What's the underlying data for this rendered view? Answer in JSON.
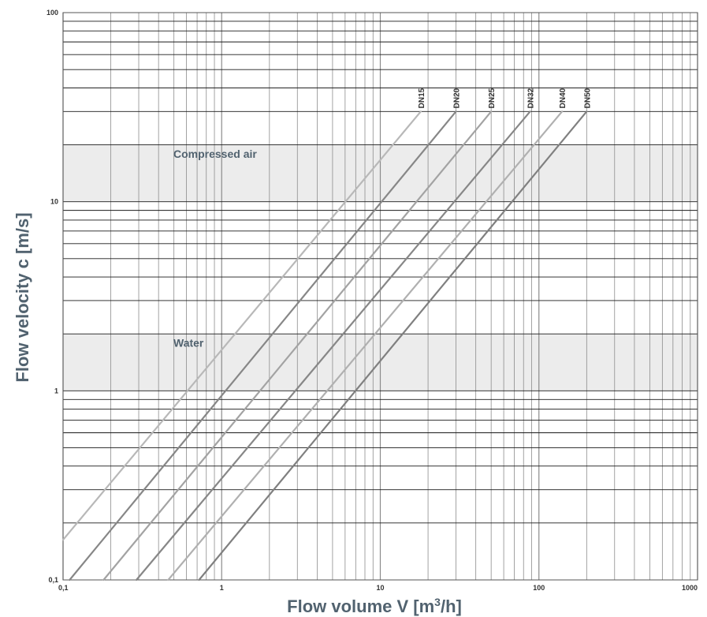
{
  "chart_data": {
    "type": "line",
    "xlabel_prefix": "Flow volume V [m",
    "xlabel_sup": "3",
    "xlabel_suffix": "/h]",
    "ylabel": "Flow velocity c [m/s]",
    "x_scale": "log",
    "y_scale": "log",
    "xlim": [
      0.1,
      1000
    ],
    "ylim": [
      0.1,
      100
    ],
    "x_ticks": [
      {
        "value": 0.1,
        "label": "0,1"
      },
      {
        "value": 1,
        "label": "1"
      },
      {
        "value": 10,
        "label": "10"
      },
      {
        "value": 100,
        "label": "100"
      },
      {
        "value": 1000,
        "label": "1000"
      }
    ],
    "y_ticks": [
      {
        "value": 0.1,
        "label": "0,1"
      },
      {
        "value": 1,
        "label": "1"
      },
      {
        "value": 10,
        "label": "10"
      },
      {
        "value": 100,
        "label": "100"
      }
    ],
    "grid": true,
    "bands": [
      {
        "label": "Compressed air",
        "y_range": [
          10,
          20
        ],
        "color": "#ececec"
      },
      {
        "label": "Water",
        "y_range": [
          1,
          2
        ],
        "color": "#ececec"
      }
    ],
    "series": [
      {
        "name": "DN15",
        "color": "#b8b8b8",
        "points": [
          [
            0.1,
            0.163
          ],
          [
            18,
            30
          ]
        ]
      },
      {
        "name": "DN20",
        "color": "#878787",
        "points": [
          [
            0.11,
            0.1
          ],
          [
            30,
            30
          ]
        ]
      },
      {
        "name": "DN25",
        "color": "#a3a3a3",
        "points": [
          [
            0.18,
            0.1
          ],
          [
            50,
            30
          ]
        ]
      },
      {
        "name": "DN32",
        "color": "#878787",
        "points": [
          [
            0.29,
            0.1
          ],
          [
            88,
            30
          ]
        ]
      },
      {
        "name": "DN40",
        "color": "#b0b0b0",
        "points": [
          [
            0.46,
            0.1
          ],
          [
            140,
            30
          ]
        ]
      },
      {
        "name": "DN50",
        "color": "#808080",
        "points": [
          [
            0.72,
            0.1
          ],
          [
            200,
            30
          ]
        ]
      }
    ]
  }
}
